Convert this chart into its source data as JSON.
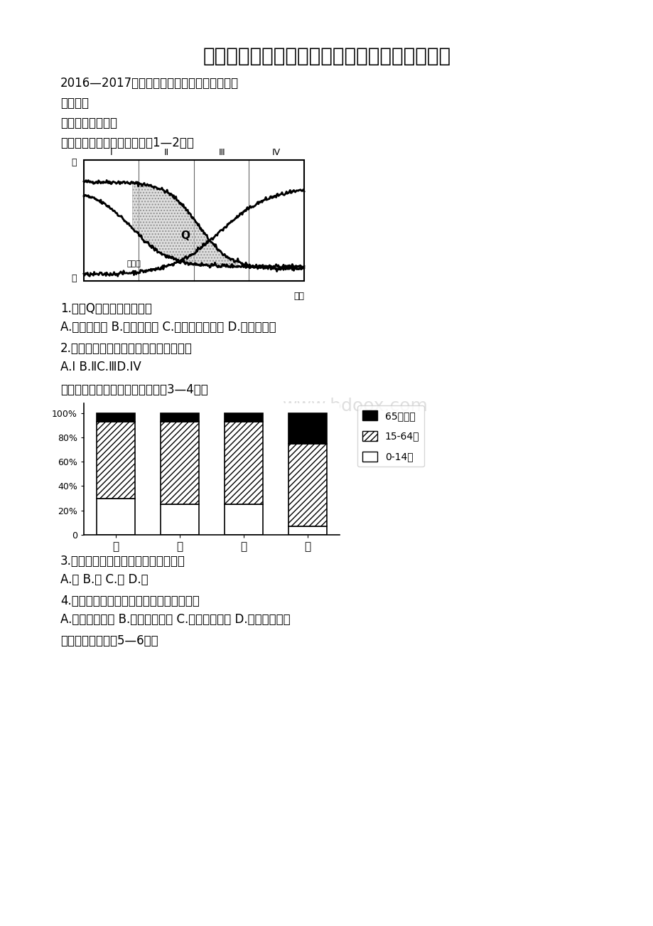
{
  "title": "江苏省盐城市学年高一下学期期末考试地理试题",
  "subtitle1": "2016—2017学年度第二学期高一年级期终考试",
  "subtitle2": "地理试题",
  "section1": "一、单项选择题。",
  "intro1": "读人口增长模式示意图，完成1—2题。",
  "q1": "1.图中Q所示的阴影区表示",
  "q1_options": "A.人口出生率 B.人口死亡率 C.人口自然增长率 D.迁移人口数",
  "q2": "2.图中与我国当前人口增长阶段相符的是",
  "q2_options": "A.I B.ⅡC.ⅢD.IV",
  "intro2": "读四国人口年龄结构示意图，完成3—4题。",
  "q3": "3.四国中，升学和受教育压力最大的是",
  "q3_options": "A.甲 B.乙 C.丙 D.丁",
  "q4": "4.针对丁国主要人口问题，可采取的措施是",
  "q4_options": "A.限制移民涌入 B.鼓励外出务工 C.完善养老体系 D.提倡少生优生",
  "intro3": "读右图漫画，完成5—6题。",
  "background_color": "#ffffff",
  "text_color": "#000000",
  "watermark": "www.bdoox.com",
  "bar_categories": [
    "甲",
    "乙",
    "丙",
    "丁"
  ],
  "bar_65plus": [
    7,
    7,
    7,
    25
  ],
  "bar_15_64": [
    63,
    68,
    68,
    68
  ],
  "bar_0_14": [
    30,
    25,
    25,
    7
  ],
  "legend_65": "65岁以上",
  "legend_15_64": "15-64岁",
  "legend_0_14": "0-14岁",
  "fig1_roman": [
    "I",
    "Ⅱ",
    "Ⅲ",
    "IV"
  ],
  "fig1_high": "高",
  "fig1_low": "低",
  "fig1_time": "时间",
  "fig1_population": "总人口",
  "fig1_Q": "Q"
}
